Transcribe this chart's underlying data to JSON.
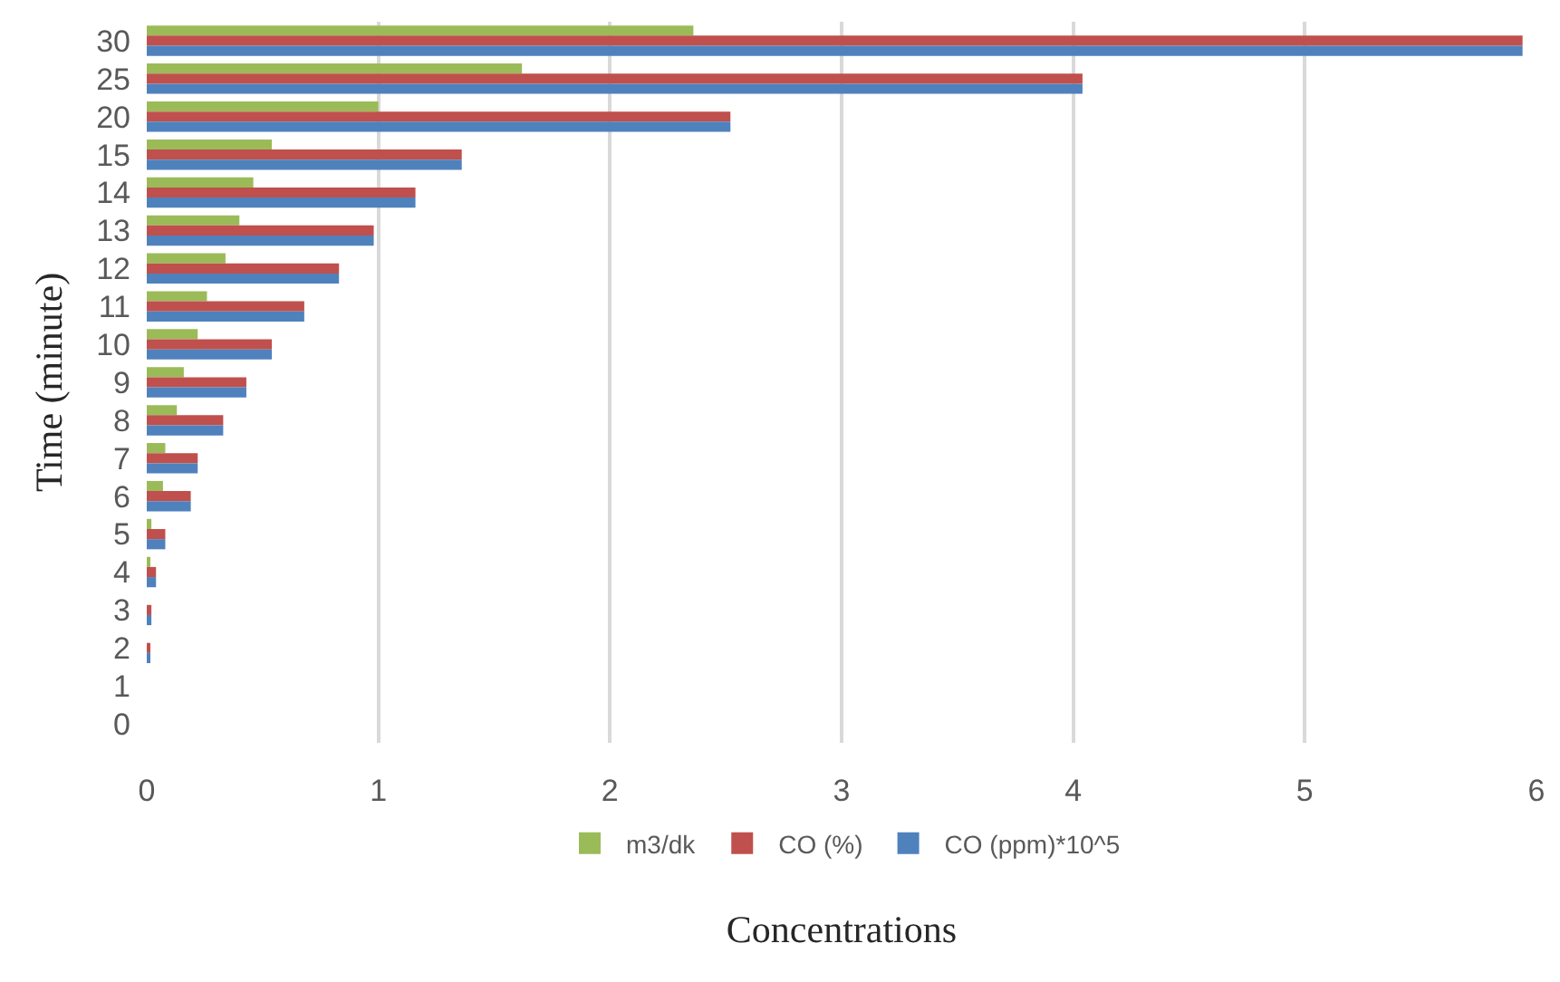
{
  "chart_data": {
    "type": "bar",
    "orientation": "horizontal",
    "xlabel": "Concentrations",
    "ylabel": "Time (minute)",
    "categories": [
      "30",
      "25",
      "20",
      "15",
      "14",
      "13",
      "12",
      "11",
      "10",
      "9",
      "8",
      "7",
      "6",
      "5",
      "4",
      "3",
      "2",
      "1",
      "0"
    ],
    "series": [
      {
        "name": "m3/dk",
        "color": "#9bbb59",
        "values": [
          2.36,
          1.62,
          1.0,
          0.54,
          0.46,
          0.4,
          0.34,
          0.26,
          0.22,
          0.16,
          0.13,
          0.08,
          0.07,
          0.02,
          0.01,
          0,
          0,
          0,
          0
        ]
      },
      {
        "name": "CO (%)",
        "color": "#c0504d",
        "values": [
          5.94,
          4.04,
          2.52,
          1.36,
          1.16,
          0.98,
          0.83,
          0.68,
          0.54,
          0.43,
          0.33,
          0.22,
          0.19,
          0.08,
          0.04,
          0.02,
          0.01,
          0,
          0
        ]
      },
      {
        "name": "CO (ppm)*10^5",
        "color": "#4f81bd",
        "values": [
          5.94,
          4.04,
          2.52,
          1.36,
          1.16,
          0.98,
          0.83,
          0.68,
          0.54,
          0.43,
          0.33,
          0.22,
          0.19,
          0.08,
          0.04,
          0.02,
          0.01,
          0,
          0
        ]
      }
    ],
    "xlim": [
      0,
      6
    ],
    "xticks": [
      0,
      1,
      2,
      3,
      4,
      5,
      6
    ],
    "grid": "x",
    "legend": "bottom"
  }
}
